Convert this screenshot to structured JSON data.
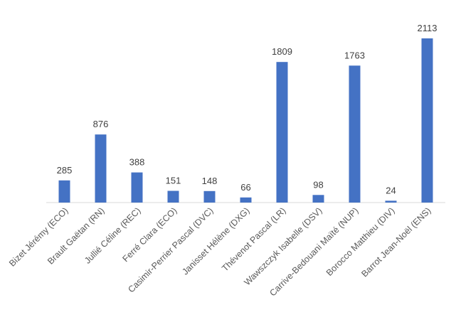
{
  "chart_data": {
    "type": "bar",
    "title": "",
    "xlabel": "",
    "ylabel": "",
    "categories": [
      "Bizet Jérémy (ECO)",
      "Brault Gaëtan (RN)",
      "Jullié Céline (REC)",
      "Ferré Clara (ECO)",
      "Casimir-Perrier Pascal (DVC)",
      "Janisset Hélène (DXG)",
      "Thévenot Pascal (LR)",
      "Wawszczyk Isabelle (DSV)",
      "Carrive-Bedouani Maïté (NUP)",
      "Borocco Matthieu (DIV)",
      "Barrot Jean-Noël (ENS)"
    ],
    "values": [
      285,
      876,
      388,
      151,
      148,
      66,
      1809,
      98,
      1763,
      24,
      2113
    ],
    "data_labels": [
      "285",
      "876",
      "388",
      "151",
      "148",
      "66",
      "1809",
      "98",
      "1763",
      "24",
      "2113"
    ],
    "ylim": [
      0,
      2113
    ],
    "y_axis_visible": false,
    "grid": false,
    "legend": "none",
    "bar_color": "#4472C4",
    "axis_color": "#D9D9D9"
  }
}
